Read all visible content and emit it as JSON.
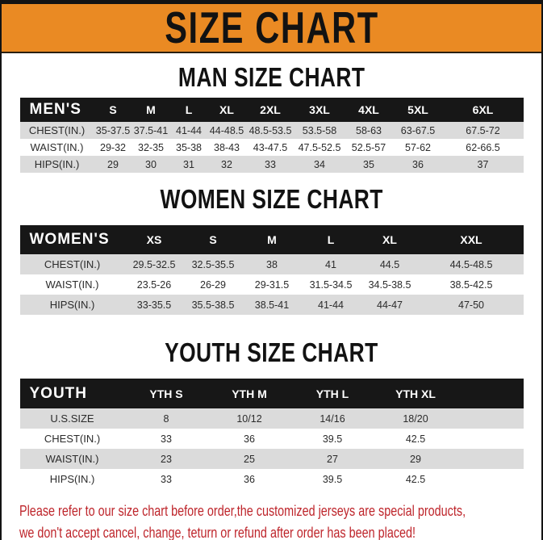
{
  "banner": {
    "title": "SIZE CHART"
  },
  "colors": {
    "banner_orange": "#EA8A23",
    "header_bar_black": "#171717",
    "row_stripe_gray": "#DBDBDB",
    "footer_red": "#BE252B",
    "title_black": "#121212"
  },
  "sections": [
    {
      "id": "men",
      "title": "MAN SIZE CHART",
      "corner_label": "MEN'S",
      "columns": [
        "S",
        "M",
        "L",
        "XL",
        "2XL",
        "3XL",
        "4XL",
        "5XL",
        "6XL"
      ],
      "rows": [
        {
          "label": "CHEST(IN.)",
          "values": [
            "35-37.5",
            "37.5-41",
            "41-44",
            "44-48.5",
            "48.5-53.5",
            "53.5-58",
            "58-63",
            "63-67.5",
            "67.5-72"
          ]
        },
        {
          "label": "WAIST(IN.)",
          "values": [
            "29-32",
            "32-35",
            "35-38",
            "38-43",
            "43-47.5",
            "47.5-52.5",
            "52.5-57",
            "57-62",
            "62-66.5"
          ]
        },
        {
          "label": "HIPS(IN.)",
          "values": [
            "29",
            "30",
            "31",
            "32",
            "33",
            "34",
            "35",
            "36",
            "37"
          ]
        }
      ]
    },
    {
      "id": "women",
      "title": "WOMEN SIZE CHART",
      "corner_label": "WOMEN'S",
      "columns": [
        "XS",
        "S",
        "M",
        "L",
        "XL",
        "XXL"
      ],
      "rows": [
        {
          "label": "CHEST(IN.)",
          "values": [
            "29.5-32.5",
            "32.5-35.5",
            "38",
            "41",
            "44.5",
            "44.5-48.5"
          ]
        },
        {
          "label": "WAIST(IN.)",
          "values": [
            "23.5-26",
            "26-29",
            "29-31.5",
            "31.5-34.5",
            "34.5-38.5",
            "38.5-42.5"
          ]
        },
        {
          "label": "HIPS(IN.)",
          "values": [
            "33-35.5",
            "35.5-38.5",
            "38.5-41",
            "41-44",
            "44-47",
            "47-50"
          ]
        }
      ]
    },
    {
      "id": "youth",
      "title": "YOUTH SIZE CHART",
      "corner_label": "YOUTH",
      "columns": [
        "YTH S",
        "YTH M",
        "YTH L",
        "YTH XL"
      ],
      "rows": [
        {
          "label": "U.S.SIZE",
          "values": [
            "8",
            "10/12",
            "14/16",
            "18/20"
          ]
        },
        {
          "label": "CHEST(IN.)",
          "values": [
            "33",
            "36",
            "39.5",
            "42.5"
          ]
        },
        {
          "label": "WAIST(IN.)",
          "values": [
            "23",
            "25",
            "27",
            "29"
          ]
        },
        {
          "label": "HIPS(IN.)",
          "values": [
            "33",
            "36",
            "39.5",
            "42.5"
          ]
        }
      ]
    }
  ],
  "footer": {
    "line1": "Please refer to our size chart before order,the customized jerseys are special products,",
    "line2": "we don't accept cancel, change, teturn or refund after order has been placed!"
  }
}
